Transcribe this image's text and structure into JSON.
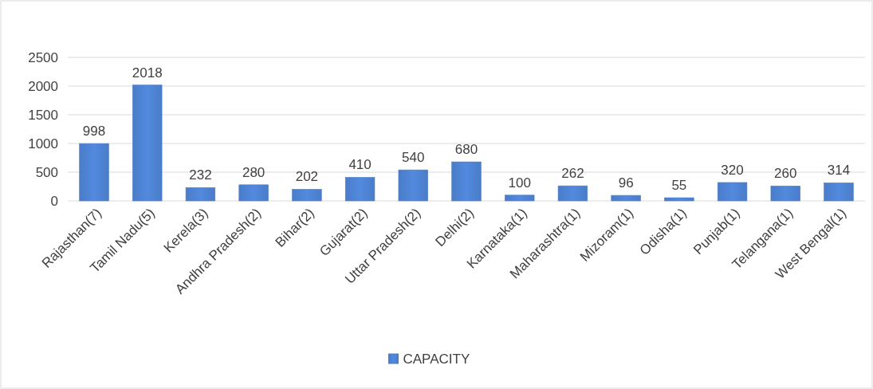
{
  "chart_data": {
    "type": "bar",
    "categories": [
      "Rajasthan(7)",
      "Tamil Nadu(5)",
      "Kerela(3)",
      "Andhra Pradesh(2)",
      "Bihar(2)",
      "Gujarat(2)",
      "Uttar Pradesh(2)",
      "Delhi(2)",
      "Karnataka(1)",
      "Maharashtra(1)",
      "Mizoram(1)",
      "Odisha(1)",
      "Punjab(1)",
      "Telangana(1)",
      "West Bengal(1)"
    ],
    "series": [
      {
        "name": "CAPACITY",
        "color": "#4a7cc8",
        "values": [
          998,
          2018,
          232,
          280,
          202,
          410,
          540,
          680,
          100,
          262,
          96,
          55,
          320,
          260,
          314
        ]
      }
    ],
    "ylim": [
      0,
      2500
    ],
    "yticks": [
      0,
      500,
      1000,
      1500,
      2000,
      2500
    ],
    "grid": "y",
    "data_labels": true,
    "legend": "bottom"
  }
}
